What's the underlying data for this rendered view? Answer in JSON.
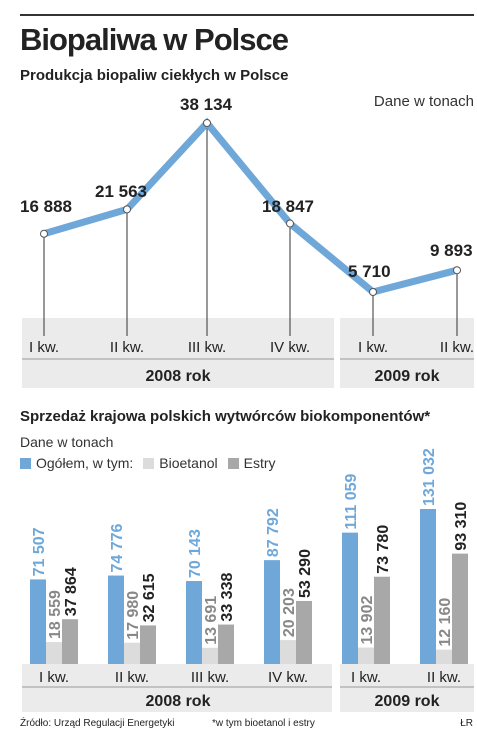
{
  "header": {
    "title": "Biopaliwa w Polsce",
    "subtitle": "Produkcja biopaliw ciekłych w Polsce",
    "unit": "Dane w tonach"
  },
  "section2": {
    "title": "Sprzedaż krajowa polskich wytwórców biokomponentów*",
    "unit": "Dane w tonach",
    "legend": [
      "Ogółem, w tym:",
      "Bioetanol",
      "Estry"
    ]
  },
  "footer": {
    "source": "Źródło: Urząd Regulacji Energetyki",
    "note": "*w tym bioetanol i estry",
    "credit": "ŁR"
  },
  "colors": {
    "blue": "#6fa8d8",
    "bioetanol": "#dcdcdc",
    "estry": "#a8a8a8",
    "band": "#ebebeb"
  },
  "chart_data": [
    {
      "type": "line",
      "title": "Produkcja biopaliw ciekłych w Polsce",
      "ylabel": "Dane w tonach",
      "categories": [
        "I kw.",
        "II kw.",
        "III kw.",
        "IV kw.",
        "I kw.",
        "II kw."
      ],
      "values": [
        16888,
        21563,
        38134,
        18847,
        5710,
        9893
      ],
      "value_labels": [
        "16 888",
        "21 563",
        "38 134",
        "18 847",
        "5 710",
        "9 893"
      ],
      "years": [
        {
          "label": "2008 rok",
          "count": 4
        },
        {
          "label": "2009 rok",
          "count": 2
        }
      ]
    },
    {
      "type": "bar",
      "title": "Sprzedaż krajowa polskich wytwórców biokomponentów*",
      "ylabel": "Dane w tonach",
      "categories": [
        "I kw.",
        "II kw.",
        "III kw.",
        "IV kw.",
        "I kw.",
        "II kw."
      ],
      "series": [
        {
          "name": "Ogółem, w tym:",
          "values": [
            71507,
            74776,
            70143,
            87792,
            111059,
            131032
          ],
          "labels": [
            "71 507",
            "74 776",
            "70 143",
            "87 792",
            "111 059",
            "131 032"
          ]
        },
        {
          "name": "Bioetanol",
          "values": [
            18559,
            17980,
            13691,
            20203,
            13902,
            12160
          ],
          "labels": [
            "18 559",
            "17 980",
            "13 691",
            "20 203",
            "13 902",
            "12 160"
          ]
        },
        {
          "name": "Estry",
          "values": [
            37864,
            32615,
            33338,
            53290,
            73780,
            93310
          ],
          "labels": [
            "37 864",
            "32 615",
            "33 338",
            "53 290",
            "73 780",
            "93 310"
          ]
        }
      ],
      "years": [
        {
          "label": "2008 rok",
          "count": 4
        },
        {
          "label": "2009 rok",
          "count": 2
        }
      ]
    }
  ]
}
